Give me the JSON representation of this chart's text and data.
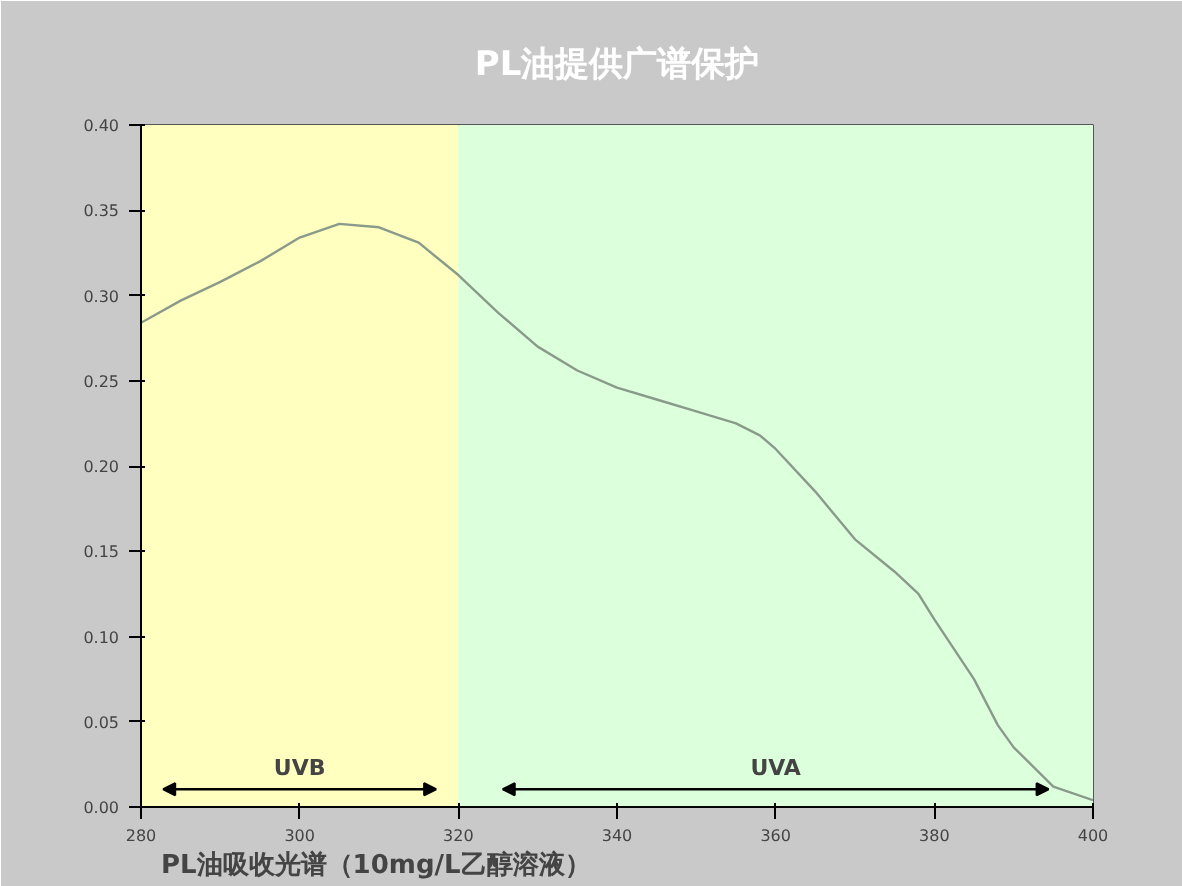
{
  "chart_data": {
    "type": "line",
    "title": "PL油提供广谱保护",
    "x": [
      280,
      285,
      290,
      295,
      300,
      305,
      310,
      315,
      320,
      325,
      330,
      335,
      340,
      345,
      350,
      355,
      358,
      360,
      365,
      370,
      375,
      378,
      380,
      385,
      388,
      390,
      395,
      400
    ],
    "series": [
      {
        "color": "#8a9a8a",
        "values": [
          0.284,
          0.297,
          0.308,
          0.32,
          0.334,
          0.342,
          0.34,
          0.331,
          0.312,
          0.29,
          0.27,
          0.256,
          0.246,
          0.239,
          0.232,
          0.225,
          0.218,
          0.21,
          0.185,
          0.157,
          0.138,
          0.125,
          0.11,
          0.075,
          0.048,
          0.035,
          0.012,
          0.004
        ]
      }
    ],
    "xlim": [
      280,
      400
    ],
    "xticks": [
      {
        "value": 280,
        "label": "280"
      },
      {
        "value": 300,
        "label": "300"
      },
      {
        "value": 320,
        "label": "320"
      },
      {
        "value": 340,
        "label": "340"
      },
      {
        "value": 360,
        "label": "360"
      },
      {
        "value": 380,
        "label": "380"
      },
      {
        "value": 400,
        "label": "400"
      }
    ],
    "ylim": [
      0,
      0.4
    ],
    "yticks": [
      {
        "value": 0,
        "label": "0.00"
      },
      {
        "value": 0.05,
        "label": "0.05"
      },
      {
        "value": 0.1,
        "label": "0.10"
      },
      {
        "value": 0.15,
        "label": "0.15"
      },
      {
        "value": 0.2,
        "label": "0.20"
      },
      {
        "value": 0.25,
        "label": "0.25"
      },
      {
        "value": 0.3,
        "label": "0.30"
      },
      {
        "value": 0.35,
        "label": "0.35"
      },
      {
        "value": 0.4,
        "label": "0.40"
      }
    ],
    "bands": [
      {
        "axis": "x",
        "from": 280,
        "to": 320,
        "label": "UVB",
        "color": "#ffffc0"
      },
      {
        "axis": "x",
        "from": 320,
        "to": 400,
        "label": "UVA",
        "color": "#dcffdc"
      }
    ],
    "annotations": [
      "PL油吸收光谱（10mg/L乙醇溶液）"
    ],
    "grid": false,
    "marker": "none",
    "line_style": "solid"
  }
}
